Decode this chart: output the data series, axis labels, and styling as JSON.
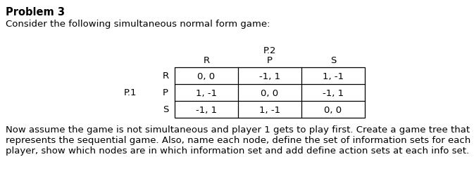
{
  "title": "Problem 3",
  "intro_text": "Consider the following simultaneous normal form game:",
  "p2_label": "P.2",
  "p1_label": "P.1",
  "col_headers": [
    "R",
    "P",
    "S"
  ],
  "row_headers": [
    "R",
    "P",
    "S"
  ],
  "table_data": [
    [
      "0, 0",
      "-1, 1",
      "1, -1"
    ],
    [
      "1, -1",
      "0, 0",
      "-1, 1"
    ],
    [
      "-1, 1",
      "1, -1",
      "0, 0"
    ]
  ],
  "footer_line1": "Now assume the game is not simultaneous and player 1 gets to play first. Create a game tree that",
  "footer_line2": "represents the sequential game. Also, name each node, define the set of information sets for each",
  "footer_line3": "player, show which nodes are in which information set and add define action sets at each info set.",
  "bg_color": "#ffffff",
  "text_color": "#000000",
  "font_size_title": 10.5,
  "font_size_body": 9.5,
  "font_size_table": 9.5
}
